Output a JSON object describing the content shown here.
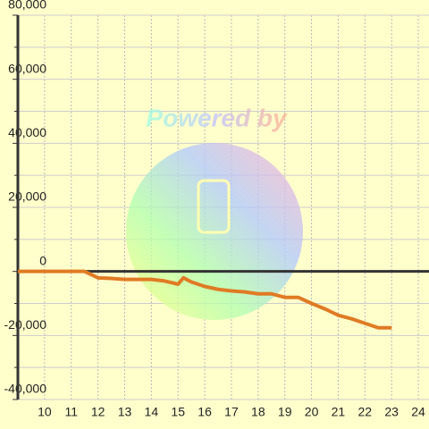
{
  "chart_data": {
    "type": "line",
    "watermark": "Powered by",
    "x": [
      9,
      11.5,
      12,
      12.5,
      13,
      14,
      14.5,
      15,
      15.2,
      15.5,
      16,
      16.5,
      17,
      17.5,
      18,
      18.5,
      19,
      19.5,
      20,
      20.5,
      21,
      21.5,
      22,
      22.5,
      23
    ],
    "series": [
      {
        "color": "#e07b24",
        "values": [
          0,
          0,
          -2000,
          -2200,
          -2500,
          -2500,
          -3000,
          -4000,
          -2000,
          -3300,
          -4700,
          -5600,
          -6100,
          -6400,
          -7000,
          -7000,
          -8100,
          -8100,
          -10000,
          -11700,
          -13700,
          -14800,
          -16200,
          -17600,
          -17600
        ]
      }
    ],
    "xlim": [
      9,
      24.4
    ],
    "xticks": [
      10,
      11,
      12,
      13,
      14,
      15,
      16,
      17,
      18,
      19,
      20,
      21,
      22,
      23,
      24
    ],
    "ylim": [
      -40000,
      80000
    ],
    "yticks": [
      {
        "value": -40000,
        "label": "-40,000"
      },
      {
        "value": -20000,
        "label": "-20,000"
      },
      0,
      {
        "value": 20000,
        "label": "20,000"
      },
      {
        "value": 40000,
        "label": "40,000"
      },
      {
        "value": 60000,
        "label": "60,000"
      },
      {
        "value": 80000,
        "label": "80,000"
      }
    ],
    "minor_yticks": [
      -30000,
      -10000,
      10000,
      30000,
      50000,
      70000
    ],
    "grid": true
  }
}
